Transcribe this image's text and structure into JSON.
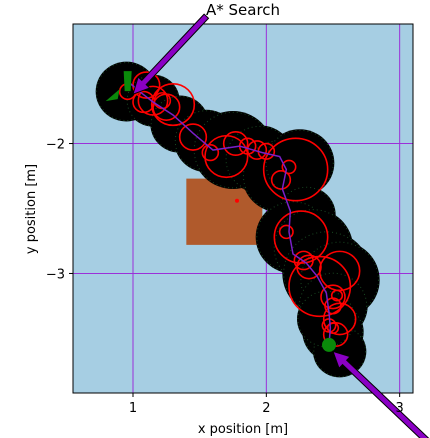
{
  "chart_data": {
    "type": "scatter",
    "title": "A* Search",
    "xlabel": "x position [m]",
    "ylabel": "y position [m]",
    "xlim": [
      0.55,
      3.1
    ],
    "ylim": [
      -3.92,
      -1.08
    ],
    "xticks": [
      1,
      2,
      3
    ],
    "xtick_labels": [
      "1",
      "2",
      "3"
    ],
    "yticks": [
      -2,
      -3
    ],
    "ytick_labels": [
      "−2",
      "−3"
    ],
    "grid": true,
    "colors": {
      "background": "#a6cee3",
      "grid": "#9b30d9",
      "obstacle": "#b05a2c",
      "explored": "#000000",
      "circles": "#ff0000",
      "path": "#7a1fc8",
      "goal": "#0a8a0a",
      "arrow": "#8a00c4"
    },
    "obstacle": {
      "x0": 1.4,
      "x1": 1.97,
      "y0": -2.78,
      "y1": -2.27
    },
    "explored_blobs": [
      [
        0.95,
        -1.6,
        0.23
      ],
      [
        1.15,
        -1.67,
        0.2
      ],
      [
        1.35,
        -1.85,
        0.22
      ],
      [
        1.55,
        -1.98,
        0.24
      ],
      [
        1.75,
        -2.05,
        0.3
      ],
      [
        1.95,
        -2.12,
        0.26
      ],
      [
        2.1,
        -2.25,
        0.28
      ],
      [
        2.25,
        -2.15,
        0.26
      ],
      [
        2.3,
        -2.55,
        0.22
      ],
      [
        2.2,
        -2.72,
        0.28
      ],
      [
        2.35,
        -2.8,
        0.3
      ],
      [
        2.45,
        -3.0,
        0.33
      ],
      [
        2.55,
        -3.05,
        0.3
      ],
      [
        2.5,
        -3.25,
        0.26
      ],
      [
        2.5,
        -3.45,
        0.23
      ],
      [
        2.55,
        -3.6,
        0.2
      ],
      [
        2.45,
        -3.35,
        0.22
      ]
    ],
    "explored_circles": [
      [
        0.96,
        -1.6,
        0.06
      ],
      [
        1.1,
        -1.55,
        0.1
      ],
      [
        1.08,
        -1.68,
        0.08
      ],
      [
        1.15,
        -1.67,
        0.11
      ],
      [
        1.25,
        -1.72,
        0.1
      ],
      [
        1.22,
        -1.67,
        0.06
      ],
      [
        1.3,
        -1.7,
        0.16
      ],
      [
        1.45,
        -1.95,
        0.1
      ],
      [
        1.58,
        -2.07,
        0.06
      ],
      [
        1.7,
        -2.1,
        0.16
      ],
      [
        1.77,
        -2.0,
        0.09
      ],
      [
        1.86,
        -2.02,
        0.06
      ],
      [
        1.93,
        -2.05,
        0.07
      ],
      [
        2.0,
        -2.06,
        0.06
      ],
      [
        2.17,
        -2.18,
        0.05
      ],
      [
        2.22,
        -2.2,
        0.24
      ],
      [
        2.11,
        -2.28,
        0.07
      ],
      [
        2.26,
        -2.72,
        0.2
      ],
      [
        2.15,
        -2.68,
        0.05
      ],
      [
        2.28,
        -2.9,
        0.07
      ],
      [
        2.32,
        -2.95,
        0.09
      ],
      [
        2.4,
        -3.1,
        0.23
      ],
      [
        2.55,
        -2.98,
        0.15
      ],
      [
        2.5,
        -3.18,
        0.09
      ],
      [
        2.5,
        -3.25,
        0.06
      ],
      [
        2.53,
        -3.17,
        0.04
      ],
      [
        2.47,
        -3.4,
        0.05
      ],
      [
        2.5,
        -3.42,
        0.04
      ],
      [
        2.52,
        -3.47,
        0.09
      ],
      [
        2.55,
        -3.35,
        0.12
      ]
    ],
    "path": [
      [
        0.96,
        -1.52
      ],
      [
        1.05,
        -1.6
      ],
      [
        1.15,
        -1.68
      ],
      [
        1.3,
        -1.78
      ],
      [
        1.45,
        -1.92
      ],
      [
        1.6,
        -2.05
      ],
      [
        1.8,
        -2.02
      ],
      [
        1.97,
        -2.07
      ],
      [
        2.1,
        -2.1
      ],
      [
        2.15,
        -2.2
      ],
      [
        2.12,
        -2.35
      ],
      [
        2.18,
        -2.52
      ],
      [
        2.17,
        -2.68
      ],
      [
        2.2,
        -2.85
      ],
      [
        2.3,
        -2.92
      ],
      [
        2.38,
        -3.02
      ],
      [
        2.45,
        -3.15
      ],
      [
        2.47,
        -3.3
      ],
      [
        2.48,
        -3.42
      ],
      [
        2.47,
        -3.55
      ]
    ],
    "start": [
      0.96,
      -1.52
    ],
    "goal": [
      2.47,
      -3.55
    ],
    "marker_point": [
      1.78,
      -2.44
    ],
    "arrows": [
      {
        "from": [
          1.55,
          -1.02
        ],
        "to": [
          1.0,
          -1.62
        ]
      },
      {
        "from": [
          3.32,
          -4.4
        ],
        "to": [
          2.5,
          -3.6
        ]
      }
    ]
  }
}
